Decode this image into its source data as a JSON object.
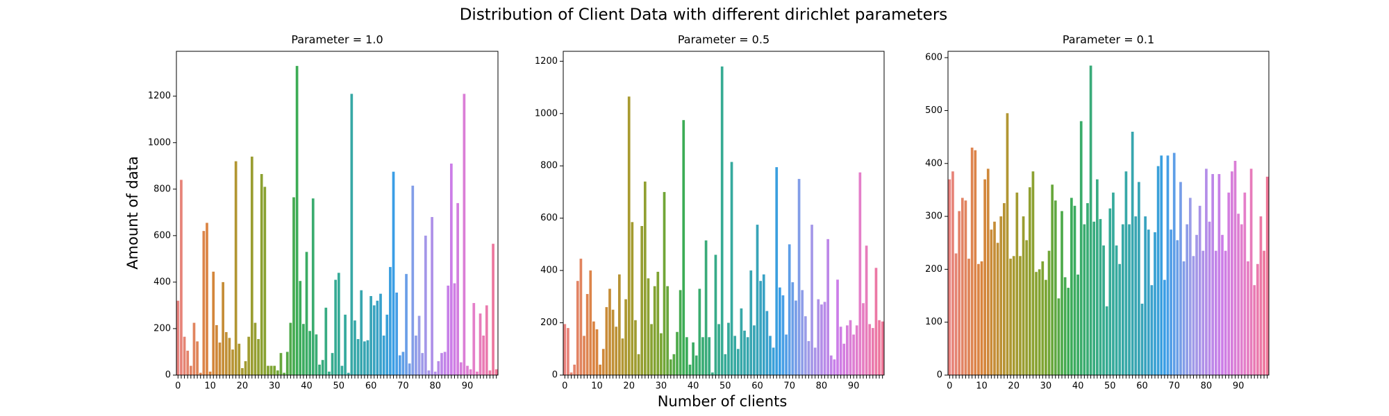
{
  "title": "Distribution of Client Data with different dirichlet parameters",
  "xlabel": "Number of clients",
  "ylabel": "Amount of data",
  "chart_data": [
    {
      "type": "bar",
      "title": "Parameter = 1.0",
      "palette": "husl",
      "categories": [
        "0",
        null,
        null,
        null,
        null,
        null,
        null,
        null,
        null,
        null,
        "10",
        null,
        null,
        null,
        null,
        null,
        null,
        null,
        null,
        null,
        "20",
        null,
        null,
        null,
        null,
        null,
        null,
        null,
        null,
        null,
        "30",
        null,
        null,
        null,
        null,
        null,
        null,
        null,
        null,
        null,
        "40",
        null,
        null,
        null,
        null,
        null,
        null,
        null,
        null,
        null,
        "50",
        null,
        null,
        null,
        null,
        null,
        null,
        null,
        null,
        null,
        "60",
        null,
        null,
        null,
        null,
        null,
        null,
        null,
        null,
        null,
        "70",
        null,
        null,
        null,
        null,
        null,
        null,
        null,
        null,
        null,
        "80",
        null,
        null,
        null,
        null,
        null,
        null,
        null,
        null,
        null,
        "90",
        null,
        null,
        null,
        null,
        null,
        null,
        null,
        null,
        null
      ],
      "values": [
        320,
        840,
        165,
        105,
        40,
        225,
        145,
        10,
        620,
        655,
        15,
        445,
        215,
        140,
        400,
        185,
        160,
        110,
        920,
        135,
        30,
        60,
        165,
        940,
        225,
        155,
        865,
        810,
        40,
        40,
        40,
        20,
        95,
        10,
        100,
        225,
        765,
        1330,
        405,
        220,
        530,
        190,
        760,
        175,
        45,
        65,
        290,
        15,
        95,
        410,
        440,
        40,
        260,
        10,
        1210,
        235,
        155,
        365,
        145,
        150,
        340,
        300,
        320,
        350,
        170,
        260,
        465,
        875,
        355,
        85,
        100,
        435,
        50,
        815,
        170,
        255,
        95,
        600,
        20,
        680,
        15,
        60,
        95,
        100,
        385,
        910,
        395,
        740,
        55,
        1210,
        40,
        25,
        310,
        15,
        265,
        170,
        300,
        20,
        565,
        25
      ],
      "ylim": [
        0,
        1393
      ],
      "yticks": [
        0,
        200,
        400,
        600,
        800,
        1000,
        1200
      ]
    },
    {
      "type": "bar",
      "title": "Parameter = 0.5",
      "palette": "husl",
      "categories": [
        "0",
        null,
        null,
        null,
        null,
        null,
        null,
        null,
        null,
        null,
        "10",
        null,
        null,
        null,
        null,
        null,
        null,
        null,
        null,
        null,
        "20",
        null,
        null,
        null,
        null,
        null,
        null,
        null,
        null,
        null,
        "30",
        null,
        null,
        null,
        null,
        null,
        null,
        null,
        null,
        null,
        "40",
        null,
        null,
        null,
        null,
        null,
        null,
        null,
        null,
        null,
        "50",
        null,
        null,
        null,
        null,
        null,
        null,
        null,
        null,
        null,
        "60",
        null,
        null,
        null,
        null,
        null,
        null,
        null,
        null,
        null,
        "70",
        null,
        null,
        null,
        null,
        null,
        null,
        null,
        null,
        null,
        "80",
        null,
        null,
        null,
        null,
        null,
        null,
        null,
        null,
        null,
        "90",
        null,
        null,
        null,
        null,
        null,
        null,
        null,
        null,
        null
      ],
      "values": [
        195,
        180,
        10,
        40,
        360,
        445,
        150,
        310,
        400,
        205,
        175,
        40,
        100,
        260,
        330,
        250,
        185,
        385,
        140,
        290,
        1065,
        585,
        210,
        80,
        570,
        740,
        370,
        195,
        340,
        395,
        160,
        700,
        340,
        60,
        80,
        165,
        325,
        975,
        145,
        40,
        125,
        75,
        330,
        145,
        515,
        145,
        10,
        460,
        195,
        1180,
        80,
        200,
        815,
        150,
        100,
        255,
        170,
        145,
        400,
        190,
        575,
        360,
        385,
        245,
        150,
        105,
        795,
        335,
        305,
        155,
        500,
        355,
        285,
        750,
        325,
        225,
        130,
        575,
        105,
        290,
        270,
        280,
        520,
        75,
        60,
        365,
        185,
        120,
        190,
        210,
        155,
        190,
        775,
        275,
        495,
        195,
        180,
        410,
        210,
        205
      ],
      "ylim": [
        0,
        1238
      ],
      "yticks": [
        0,
        200,
        400,
        600,
        800,
        1000,
        1200
      ]
    },
    {
      "type": "bar",
      "title": "Parameter = 0.1",
      "palette": "husl",
      "categories": [
        "0",
        null,
        null,
        null,
        null,
        null,
        null,
        null,
        null,
        null,
        "10",
        null,
        null,
        null,
        null,
        null,
        null,
        null,
        null,
        null,
        "20",
        null,
        null,
        null,
        null,
        null,
        null,
        null,
        null,
        null,
        "30",
        null,
        null,
        null,
        null,
        null,
        null,
        null,
        null,
        null,
        "40",
        null,
        null,
        null,
        null,
        null,
        null,
        null,
        null,
        null,
        "50",
        null,
        null,
        null,
        null,
        null,
        null,
        null,
        null,
        null,
        "60",
        null,
        null,
        null,
        null,
        null,
        null,
        null,
        null,
        null,
        "70",
        null,
        null,
        null,
        null,
        null,
        null,
        null,
        null,
        null,
        "80",
        null,
        null,
        null,
        null,
        null,
        null,
        null,
        null,
        null,
        "90",
        null,
        null,
        null,
        null,
        null,
        null,
        null,
        null,
        null
      ],
      "values": [
        370,
        385,
        230,
        310,
        335,
        330,
        220,
        430,
        425,
        210,
        215,
        370,
        390,
        275,
        290,
        250,
        300,
        325,
        495,
        220,
        225,
        345,
        225,
        300,
        255,
        355,
        385,
        195,
        200,
        215,
        180,
        235,
        360,
        330,
        145,
        310,
        185,
        165,
        335,
        320,
        190,
        480,
        285,
        325,
        585,
        290,
        370,
        295,
        245,
        130,
        315,
        345,
        245,
        210,
        285,
        385,
        285,
        460,
        300,
        365,
        135,
        300,
        275,
        170,
        270,
        395,
        415,
        180,
        415,
        275,
        420,
        255,
        365,
        215,
        285,
        335,
        225,
        265,
        320,
        235,
        390,
        290,
        380,
        235,
        380,
        265,
        235,
        345,
        385,
        405,
        305,
        285,
        345,
        215,
        390,
        170,
        210,
        300,
        235,
        375
      ],
      "ylim": [
        0,
        612
      ],
      "yticks": [
        0,
        100,
        200,
        300,
        400,
        500,
        600
      ]
    }
  ]
}
